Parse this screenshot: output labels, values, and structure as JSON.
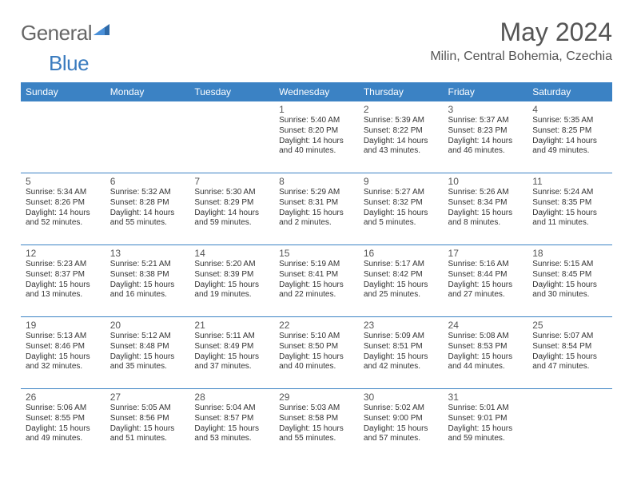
{
  "brand": {
    "word1": "General",
    "word2": "Blue"
  },
  "title": "May 2024",
  "location": "Milin, Central Bohemia, Czechia",
  "colors": {
    "header_bg": "#3b82c4",
    "header_text": "#ffffff",
    "row_border": "#3b82c4",
    "title_color": "#555555",
    "brand_gray": "#666666",
    "brand_blue": "#3b7cbf",
    "body_text": "#333333",
    "page_bg": "#ffffff"
  },
  "day_headers": [
    "Sunday",
    "Monday",
    "Tuesday",
    "Wednesday",
    "Thursday",
    "Friday",
    "Saturday"
  ],
  "weeks": [
    [
      null,
      null,
      null,
      {
        "n": "1",
        "sr": "5:40 AM",
        "ss": "8:20 PM",
        "dl": "14 hours and 40 minutes."
      },
      {
        "n": "2",
        "sr": "5:39 AM",
        "ss": "8:22 PM",
        "dl": "14 hours and 43 minutes."
      },
      {
        "n": "3",
        "sr": "5:37 AM",
        "ss": "8:23 PM",
        "dl": "14 hours and 46 minutes."
      },
      {
        "n": "4",
        "sr": "5:35 AM",
        "ss": "8:25 PM",
        "dl": "14 hours and 49 minutes."
      }
    ],
    [
      {
        "n": "5",
        "sr": "5:34 AM",
        "ss": "8:26 PM",
        "dl": "14 hours and 52 minutes."
      },
      {
        "n": "6",
        "sr": "5:32 AM",
        "ss": "8:28 PM",
        "dl": "14 hours and 55 minutes."
      },
      {
        "n": "7",
        "sr": "5:30 AM",
        "ss": "8:29 PM",
        "dl": "14 hours and 59 minutes."
      },
      {
        "n": "8",
        "sr": "5:29 AM",
        "ss": "8:31 PM",
        "dl": "15 hours and 2 minutes."
      },
      {
        "n": "9",
        "sr": "5:27 AM",
        "ss": "8:32 PM",
        "dl": "15 hours and 5 minutes."
      },
      {
        "n": "10",
        "sr": "5:26 AM",
        "ss": "8:34 PM",
        "dl": "15 hours and 8 minutes."
      },
      {
        "n": "11",
        "sr": "5:24 AM",
        "ss": "8:35 PM",
        "dl": "15 hours and 11 minutes."
      }
    ],
    [
      {
        "n": "12",
        "sr": "5:23 AM",
        "ss": "8:37 PM",
        "dl": "15 hours and 13 minutes."
      },
      {
        "n": "13",
        "sr": "5:21 AM",
        "ss": "8:38 PM",
        "dl": "15 hours and 16 minutes."
      },
      {
        "n": "14",
        "sr": "5:20 AM",
        "ss": "8:39 PM",
        "dl": "15 hours and 19 minutes."
      },
      {
        "n": "15",
        "sr": "5:19 AM",
        "ss": "8:41 PM",
        "dl": "15 hours and 22 minutes."
      },
      {
        "n": "16",
        "sr": "5:17 AM",
        "ss": "8:42 PM",
        "dl": "15 hours and 25 minutes."
      },
      {
        "n": "17",
        "sr": "5:16 AM",
        "ss": "8:44 PM",
        "dl": "15 hours and 27 minutes."
      },
      {
        "n": "18",
        "sr": "5:15 AM",
        "ss": "8:45 PM",
        "dl": "15 hours and 30 minutes."
      }
    ],
    [
      {
        "n": "19",
        "sr": "5:13 AM",
        "ss": "8:46 PM",
        "dl": "15 hours and 32 minutes."
      },
      {
        "n": "20",
        "sr": "5:12 AM",
        "ss": "8:48 PM",
        "dl": "15 hours and 35 minutes."
      },
      {
        "n": "21",
        "sr": "5:11 AM",
        "ss": "8:49 PM",
        "dl": "15 hours and 37 minutes."
      },
      {
        "n": "22",
        "sr": "5:10 AM",
        "ss": "8:50 PM",
        "dl": "15 hours and 40 minutes."
      },
      {
        "n": "23",
        "sr": "5:09 AM",
        "ss": "8:51 PM",
        "dl": "15 hours and 42 minutes."
      },
      {
        "n": "24",
        "sr": "5:08 AM",
        "ss": "8:53 PM",
        "dl": "15 hours and 44 minutes."
      },
      {
        "n": "25",
        "sr": "5:07 AM",
        "ss": "8:54 PM",
        "dl": "15 hours and 47 minutes."
      }
    ],
    [
      {
        "n": "26",
        "sr": "5:06 AM",
        "ss": "8:55 PM",
        "dl": "15 hours and 49 minutes."
      },
      {
        "n": "27",
        "sr": "5:05 AM",
        "ss": "8:56 PM",
        "dl": "15 hours and 51 minutes."
      },
      {
        "n": "28",
        "sr": "5:04 AM",
        "ss": "8:57 PM",
        "dl": "15 hours and 53 minutes."
      },
      {
        "n": "29",
        "sr": "5:03 AM",
        "ss": "8:58 PM",
        "dl": "15 hours and 55 minutes."
      },
      {
        "n": "30",
        "sr": "5:02 AM",
        "ss": "9:00 PM",
        "dl": "15 hours and 57 minutes."
      },
      {
        "n": "31",
        "sr": "5:01 AM",
        "ss": "9:01 PM",
        "dl": "15 hours and 59 minutes."
      },
      null
    ]
  ],
  "labels": {
    "sunrise": "Sunrise: ",
    "sunset": "Sunset: ",
    "daylight": "Daylight: "
  }
}
